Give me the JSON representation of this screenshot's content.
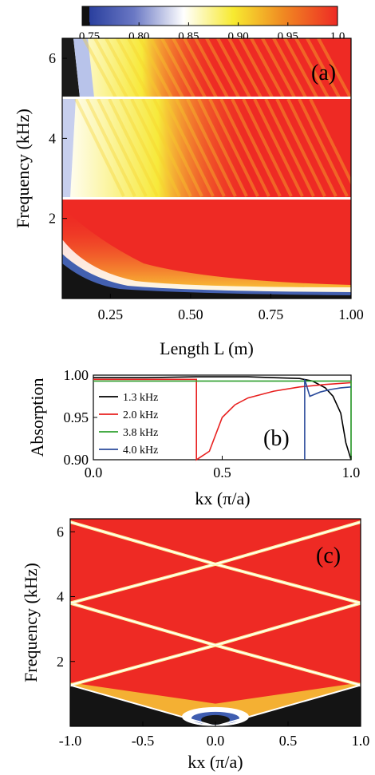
{
  "colorbar": {
    "ticks": [
      "0.75",
      "0.80",
      "0.85",
      "0.90",
      "0.95",
      "1.0"
    ],
    "range": [
      0.75,
      1.0
    ],
    "colors": [
      "#1a1a1a",
      "#2c46a6",
      "#ffffff",
      "#f5e51c",
      "#ee2a24"
    ]
  },
  "chart_data": [
    {
      "type": "heatmap",
      "panel_label": "(a)",
      "xlabel": "Length L (m)",
      "ylabel": "Frequency (kHz)",
      "xlim": [
        0.1,
        1.0
      ],
      "ylim": [
        0.0,
        6.5
      ],
      "x_ticks": [
        "0.25",
        "0.50",
        "0.75",
        "1.00"
      ],
      "y_ticks": [
        "2",
        "4",
        "6"
      ],
      "value": "absorption (0.75 – 1.0)",
      "features": {
        "band_gaps_khz": [
          2.5,
          5.0
        ],
        "low_absorption_region": "black below ~0.4 kHz at large L, rising to ~1 kHz at small L"
      }
    },
    {
      "type": "line",
      "panel_label": "(b)",
      "xlabel": "kx (π/a)",
      "ylabel": "Absorption",
      "xlim": [
        0.0,
        1.0
      ],
      "ylim": [
        0.9,
        1.0
      ],
      "x_ticks": [
        "0.0",
        "0.5",
        "1.0"
      ],
      "y_ticks": [
        "0.90",
        "0.95",
        "1.00"
      ],
      "legend_position": "left",
      "series": [
        {
          "name": "1.3 kHz",
          "color": "#000000",
          "x": [
            0.0,
            0.2,
            0.4,
            0.6,
            0.7,
            0.8,
            0.85,
            0.9,
            0.93,
            0.96,
            0.98,
            1.0
          ],
          "y": [
            0.997,
            0.997,
            0.998,
            0.998,
            0.997,
            0.996,
            0.993,
            0.985,
            0.975,
            0.955,
            0.92,
            0.9
          ]
        },
        {
          "name": "2.0 kHz",
          "color": "#e8201f",
          "x": [
            0.0,
            0.4,
            0.4,
            0.45,
            0.5,
            0.55,
            0.6,
            0.7,
            0.8,
            0.9,
            1.0
          ],
          "y": [
            0.995,
            0.995,
            0.9,
            0.91,
            0.95,
            0.965,
            0.973,
            0.981,
            0.986,
            0.989,
            0.991
          ]
        },
        {
          "name": "3.8 kHz",
          "color": "#2ea02e",
          "x": [
            0.0,
            0.5,
            0.9,
            0.99,
            1.0,
            1.0
          ],
          "y": [
            0.993,
            0.993,
            0.993,
            0.993,
            0.993,
            0.9
          ]
        },
        {
          "name": "4.0 kHz",
          "color": "#2b4b9b",
          "x": [
            0.82,
            0.82,
            0.84,
            0.88,
            0.92,
            0.96,
            1.0
          ],
          "y": [
            0.9,
            0.995,
            0.975,
            0.98,
            0.983,
            0.985,
            0.986
          ]
        }
      ]
    },
    {
      "type": "heatmap",
      "panel_label": "(c)",
      "xlabel": "kx (π/a)",
      "ylabel": "Frequency (kHz)",
      "xlim": [
        -1.0,
        1.0
      ],
      "ylim": [
        0.0,
        6.4
      ],
      "x_ticks": [
        "-1.0",
        "-0.5",
        "0.0",
        "0.5",
        "1.0"
      ],
      "y_ticks": [
        "2",
        "4",
        "6"
      ],
      "value": "absorption (0.75 – 1.0)",
      "features": {
        "crossing_lines_khz": [
          [
            0.0,
            1.27
          ],
          [
            2.5,
            1.27
          ],
          [
            2.5,
            3.8
          ],
          [
            5.0,
            3.8
          ],
          [
            5.0,
            6.3
          ]
        ],
        "low_absorption_region": "black wedge below 1.27 kHz at kx = ±1 down to 0 at kx = 0"
      }
    }
  ]
}
